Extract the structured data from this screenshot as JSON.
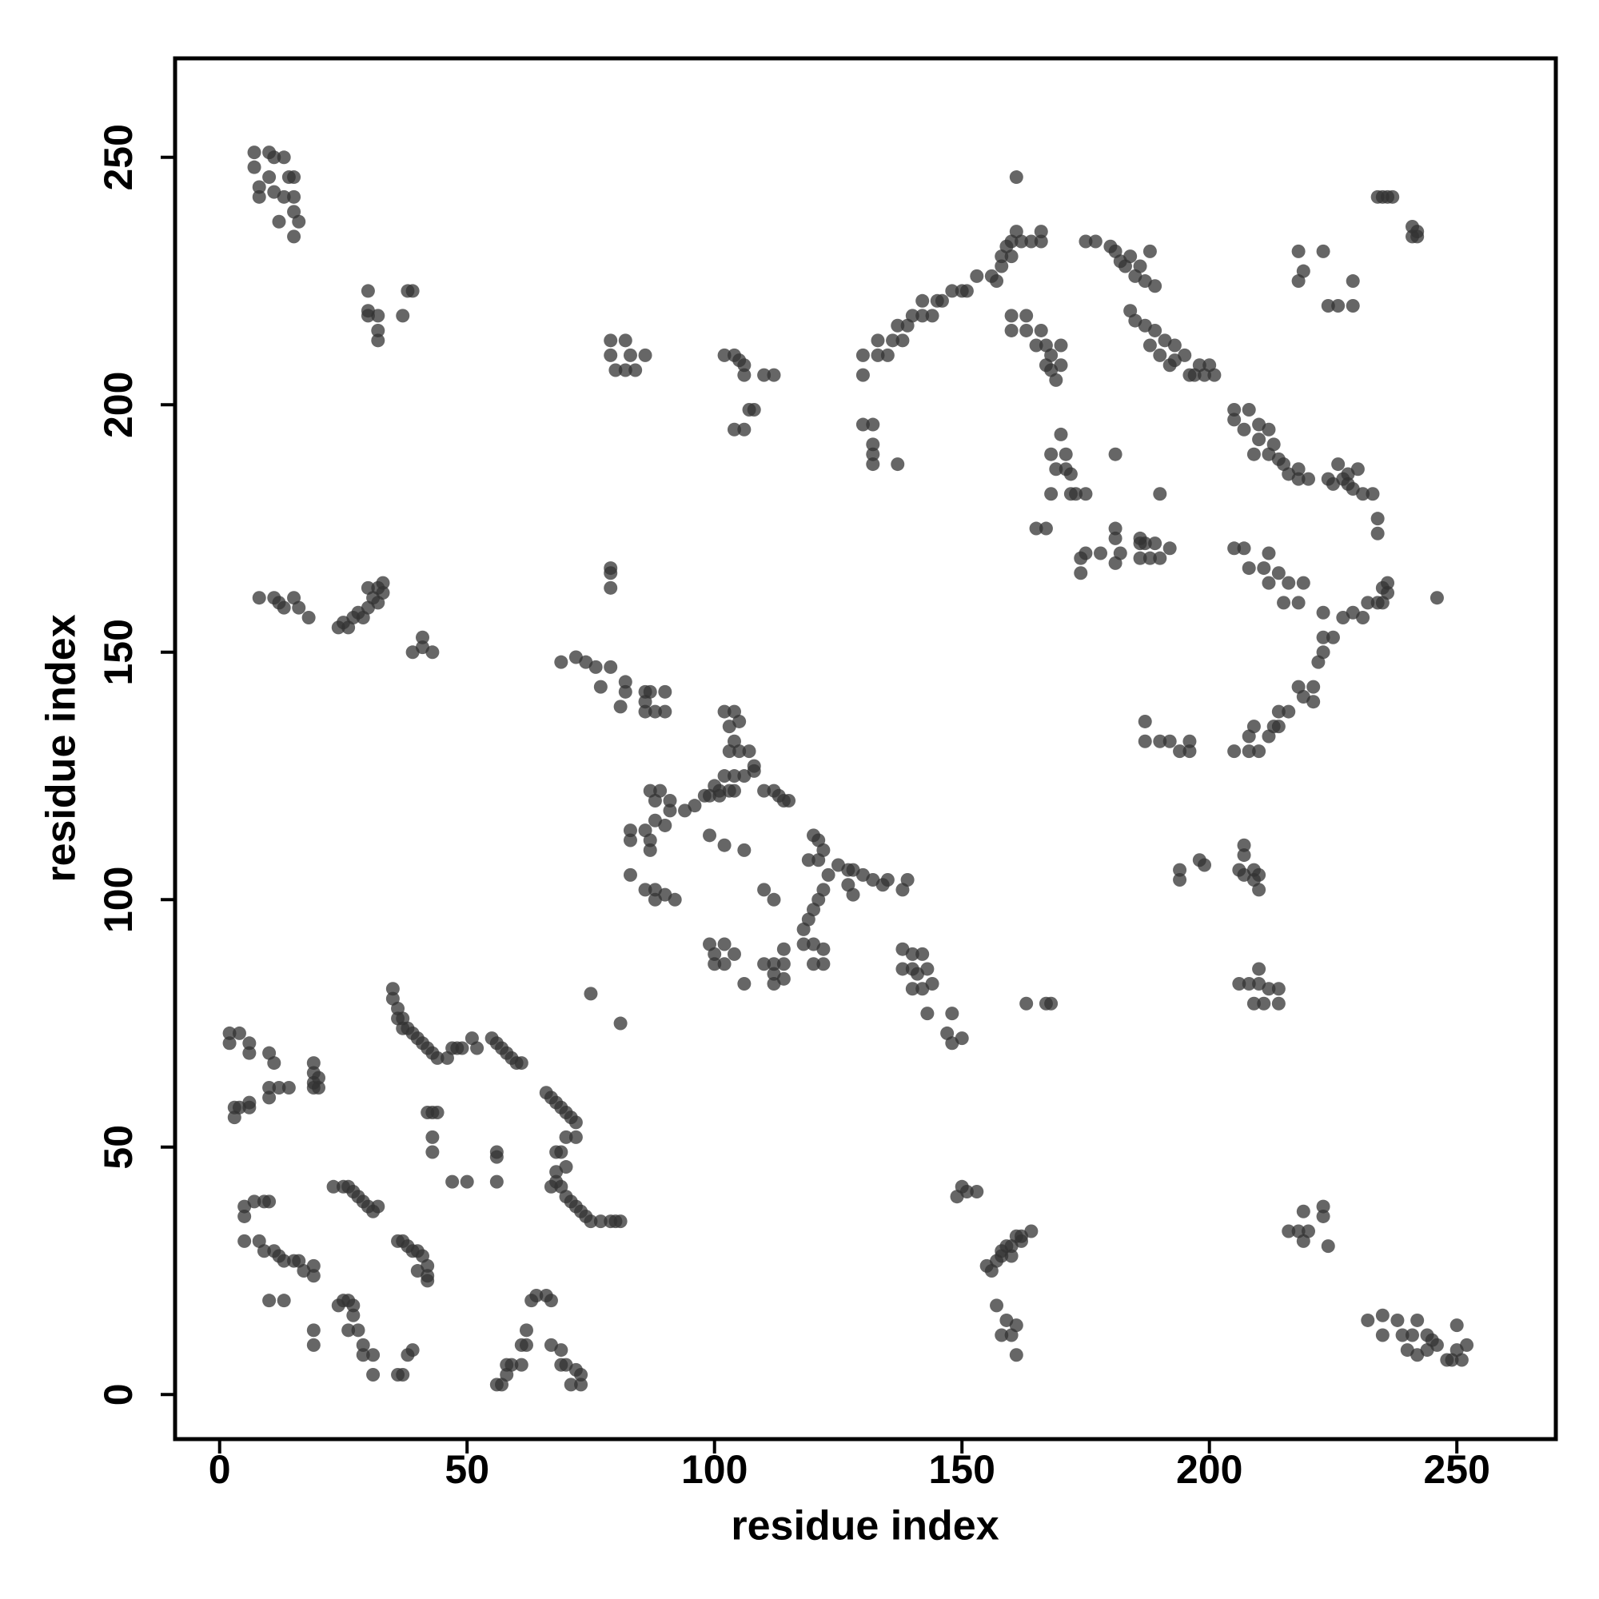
{
  "chart_data": {
    "type": "scatter",
    "x_label": "residue index",
    "y_label": "residue index",
    "xlim": [
      -9,
      270
    ],
    "ylim": [
      -9,
      270
    ],
    "xticks": [
      0,
      50,
      100,
      150,
      200,
      250
    ],
    "yticks": [
      0,
      50,
      100,
      150,
      200,
      250
    ],
    "series": [
      {
        "color": "#333333",
        "x": [
          7,
          7,
          10,
          11,
          13,
          8,
          8,
          10,
          11,
          13,
          14,
          15,
          15,
          15,
          12,
          16,
          15,
          30,
          30,
          32,
          32,
          32,
          38,
          39,
          37,
          30,
          79,
          82,
          79,
          83,
          86,
          80,
          84,
          82,
          102,
          104,
          105,
          106,
          106,
          110,
          112,
          107,
          108,
          104,
          106,
          130,
          132,
          132,
          132,
          132,
          137,
          130,
          130,
          133,
          133,
          136,
          135,
          138,
          137,
          139,
          140,
          142,
          142,
          144,
          145,
          146,
          148,
          150,
          151,
          153,
          156,
          158,
          158,
          160,
          160,
          162,
          164,
          166,
          166,
          161,
          159,
          161,
          157,
          160,
          160,
          163,
          163,
          165,
          166,
          167,
          168,
          168,
          170,
          170,
          167,
          169,
          175,
          177,
          180,
          181,
          182,
          183,
          185,
          184,
          186,
          187,
          188,
          189,
          184,
          185,
          187,
          189,
          188,
          191,
          190,
          193,
          192,
          195,
          193,
          196,
          198,
          197,
          199,
          200,
          201,
          218,
          218,
          219,
          223,
          224,
          226,
          229,
          229,
          234,
          235,
          236,
          237,
          241,
          242,
          242,
          241,
          170,
          168,
          171,
          169,
          171,
          172,
          168,
          172,
          173,
          175,
          167,
          165,
          174,
          175,
          174,
          178,
          181,
          181,
          181,
          182,
          181,
          186,
          187,
          186,
          188,
          189,
          190,
          192,
          190,
          186,
          205,
          205,
          208,
          207,
          210,
          210,
          209,
          212,
          213,
          212,
          214,
          215,
          216,
          218,
          218,
          220,
          224,
          225,
          227,
          226,
          228,
          229,
          230,
          231,
          233,
          234,
          234,
          228,
          205,
          207,
          208,
          211,
          212,
          212,
          214,
          216,
          215,
          218,
          219,
          223,
          227,
          229,
          231,
          232,
          234,
          235,
          236,
          236,
          235,
          246,
          225,
          223,
          223,
          222,
          218,
          219,
          221,
          221,
          216,
          214,
          214,
          213,
          212,
          209,
          208,
          208,
          210,
          205,
          187,
          187,
          190,
          192,
          194,
          196,
          196,
          194,
          194,
          198,
          199,
          207,
          207,
          206,
          207,
          209,
          209,
          210,
          210,
          206,
          208,
          210,
          210,
          212,
          209,
          211,
          214,
          214,
          163,
          167,
          168,
          8,
          11,
          13,
          12,
          15,
          16,
          18,
          24,
          25,
          26,
          27,
          28,
          29,
          30,
          31,
          32,
          33,
          33,
          30,
          32,
          39,
          41,
          41,
          43,
          69,
          72,
          74,
          76,
          79,
          77,
          82,
          82,
          86,
          87,
          90,
          81,
          86,
          86,
          90,
          88,
          79,
          79,
          79,
          102,
          104,
          103,
          105,
          104,
          103,
          105,
          107,
          108,
          108,
          106,
          102,
          104,
          100,
          101,
          99,
          98,
          96,
          94,
          101,
          103,
          104,
          110,
          112,
          113,
          114,
          115,
          87,
          89,
          88,
          91,
          91,
          88,
          90,
          86,
          83,
          83,
          87,
          87,
          83,
          86,
          88,
          90,
          88,
          92,
          99,
          102,
          106,
          120,
          121,
          122,
          121,
          119,
          123,
          122,
          121,
          120,
          119,
          118,
          114,
          118,
          120,
          122,
          120,
          122,
          114,
          112,
          110,
          112,
          114,
          112,
          106,
          102,
          100,
          100,
          102,
          104,
          99,
          110,
          112,
          125,
          127,
          128,
          130,
          127,
          128,
          132,
          134,
          135,
          139,
          138,
          138,
          140,
          142,
          138,
          140,
          143,
          141,
          140,
          142,
          144,
          143,
          148,
          147,
          148,
          150,
          150,
          151,
          153,
          149,
          164,
          161,
          162,
          159,
          158,
          160,
          157,
          160,
          156,
          155,
          158,
          157,
          159,
          161,
          158,
          160,
          161,
          162,
          216,
          218,
          220,
          219,
          219,
          223,
          223,
          224,
          232,
          235,
          235,
          238,
          239,
          240,
          242,
          241,
          242,
          244,
          245,
          244,
          246,
          248,
          249,
          250,
          250,
          251,
          252,
          2,
          4,
          2,
          6,
          6,
          10,
          11,
          3,
          3,
          4,
          6,
          6,
          10,
          10,
          12,
          14,
          19,
          19,
          19,
          19,
          20,
          20,
          35,
          35,
          36,
          36,
          37,
          37,
          38,
          39,
          40,
          41,
          42,
          43,
          44,
          46,
          47,
          48,
          49,
          51,
          52,
          55,
          56,
          57,
          58,
          59,
          60,
          61,
          42,
          43,
          44,
          43,
          43,
          47,
          50,
          56,
          56,
          56,
          66,
          67,
          68,
          69,
          70,
          71,
          72,
          72,
          70,
          68,
          69,
          70,
          68,
          68,
          67,
          69,
          70,
          71,
          72,
          73,
          74,
          75,
          77,
          79,
          80,
          81,
          75,
          81,
          5,
          5,
          7,
          9,
          10,
          5,
          8,
          9,
          11,
          12,
          13,
          15,
          16,
          17,
          19,
          19,
          10,
          13,
          19,
          19,
          23,
          25,
          26,
          27,
          28,
          29,
          30,
          31,
          32,
          24,
          25,
          26,
          27,
          27,
          26,
          28,
          29,
          29,
          31,
          31,
          36,
          37,
          38,
          39,
          36,
          37,
          38,
          39,
          40,
          41,
          42,
          42,
          40,
          42,
          56,
          57,
          58,
          58,
          59,
          61,
          61,
          62,
          62,
          63,
          64,
          66,
          67,
          67,
          69,
          69,
          70,
          71,
          72,
          73,
          73
        ],
        "values": [
          251,
          248,
          251,
          250,
          250,
          244,
          242,
          246,
          243,
          242,
          246,
          246,
          242,
          239,
          237,
          237,
          234,
          223,
          218,
          218,
          215,
          213,
          223,
          223,
          218,
          219,
          213,
          213,
          210,
          210,
          210,
          207,
          207,
          207,
          210,
          210,
          209,
          208,
          206,
          206,
          206,
          199,
          199,
          195,
          195,
          196,
          196,
          192,
          190,
          188,
          188,
          206,
          210,
          210,
          213,
          213,
          210,
          213,
          216,
          216,
          218,
          218,
          221,
          218,
          221,
          221,
          223,
          223,
          223,
          226,
          226,
          228,
          230,
          230,
          233,
          233,
          233,
          233,
          235,
          235,
          232,
          246,
          225,
          218,
          215,
          218,
          215,
          212,
          215,
          212,
          210,
          207,
          208,
          212,
          208,
          205,
          233,
          233,
          232,
          231,
          229,
          228,
          226,
          230,
          228,
          225,
          231,
          224,
          219,
          217,
          216,
          215,
          212,
          213,
          210,
          212,
          208,
          210,
          209,
          206,
          208,
          206,
          206,
          208,
          206,
          231,
          225,
          227,
          231,
          220,
          220,
          225,
          220,
          242,
          242,
          242,
          242,
          236,
          235,
          234,
          234,
          194,
          190,
          190,
          187,
          187,
          186,
          182,
          182,
          182,
          182,
          175,
          175,
          169,
          170,
          166,
          170,
          190,
          175,
          173,
          170,
          168,
          172,
          172,
          169,
          169,
          172,
          169,
          171,
          182,
          173,
          199,
          197,
          199,
          195,
          196,
          193,
          190,
          195,
          192,
          190,
          189,
          188,
          186,
          187,
          185,
          185,
          185,
          184,
          185,
          188,
          184,
          183,
          187,
          182,
          182,
          177,
          174,
          186,
          171,
          171,
          167,
          167,
          170,
          164,
          166,
          164,
          160,
          160,
          164,
          158,
          157,
          158,
          157,
          160,
          160,
          163,
          162,
          164,
          160,
          161,
          153,
          153,
          150,
          148,
          143,
          141,
          143,
          140,
          138,
          138,
          135,
          135,
          133,
          135,
          133,
          130,
          130,
          130,
          132,
          136,
          132,
          132,
          130,
          132,
          130,
          104,
          106,
          108,
          107,
          111,
          109,
          106,
          105,
          106,
          104,
          105,
          102,
          83,
          83,
          86,
          83,
          82,
          79,
          79,
          79,
          82,
          79,
          79,
          79,
          161,
          161,
          159,
          160,
          161,
          159,
          157,
          155,
          156,
          155,
          157,
          158,
          157,
          159,
          161,
          160,
          162,
          164,
          163,
          163,
          150,
          151,
          153,
          150,
          148,
          149,
          148,
          147,
          147,
          143,
          144,
          142,
          142,
          142,
          142,
          139,
          138,
          140,
          138,
          138,
          167,
          166,
          163,
          138,
          138,
          135,
          136,
          132,
          130,
          130,
          130,
          127,
          126,
          125,
          125,
          125,
          123,
          122,
          121,
          121,
          119,
          118,
          121,
          122,
          122,
          122,
          122,
          121,
          120,
          120,
          122,
          122,
          120,
          120,
          118,
          116,
          115,
          114,
          114,
          112,
          112,
          110,
          105,
          102,
          102,
          101,
          100,
          100,
          113,
          111,
          110,
          113,
          112,
          110,
          108,
          108,
          105,
          102,
          100,
          98,
          96,
          94,
          90,
          91,
          91,
          90,
          87,
          87,
          87,
          87,
          87,
          85,
          84,
          83,
          83,
          87,
          87,
          89,
          91,
          89,
          91,
          102,
          100,
          107,
          106,
          106,
          105,
          103,
          101,
          104,
          103,
          104,
          104,
          102,
          90,
          89,
          89,
          86,
          86,
          86,
          85,
          82,
          82,
          83,
          77,
          77,
          73,
          71,
          72,
          42,
          41,
          41,
          40,
          33,
          32,
          31,
          30,
          29,
          28,
          27,
          30,
          25,
          26,
          28,
          18,
          15,
          14,
          12,
          12,
          8,
          32,
          33,
          33,
          33,
          37,
          31,
          38,
          36,
          30,
          15,
          16,
          12,
          15,
          12,
          9,
          8,
          12,
          15,
          12,
          11,
          9,
          10,
          7,
          7,
          14,
          9,
          7,
          10,
          73,
          73,
          71,
          71,
          69,
          69,
          67,
          58,
          56,
          58,
          58,
          59,
          62,
          60,
          62,
          62,
          67,
          65,
          63,
          62,
          64,
          62,
          82,
          80,
          78,
          76,
          76,
          74,
          74,
          73,
          72,
          71,
          70,
          69,
          68,
          68,
          70,
          70,
          70,
          72,
          70,
          72,
          71,
          70,
          69,
          68,
          67,
          67,
          57,
          57,
          57,
          52,
          49,
          43,
          43,
          48,
          49,
          43,
          61,
          60,
          59,
          58,
          57,
          56,
          55,
          52,
          52,
          49,
          49,
          46,
          45,
          43,
          42,
          42,
          40,
          39,
          38,
          37,
          36,
          35,
          35,
          35,
          35,
          35,
          81,
          75,
          38,
          36,
          39,
          39,
          39,
          31,
          31,
          29,
          29,
          28,
          27,
          27,
          27,
          25,
          24,
          26,
          19,
          19,
          13,
          10,
          42,
          42,
          42,
          41,
          40,
          39,
          38,
          37,
          38,
          18,
          19,
          19,
          18,
          16,
          13,
          13,
          10,
          8,
          8,
          4,
          4,
          4,
          8,
          9,
          31,
          31,
          30,
          29,
          29,
          28,
          26,
          24,
          25,
          23,
          2,
          2,
          4,
          6,
          6,
          6,
          10,
          10,
          13,
          19,
          20,
          20,
          19,
          10,
          9,
          6,
          6,
          2,
          5,
          4,
          2
        ]
      }
    ]
  }
}
